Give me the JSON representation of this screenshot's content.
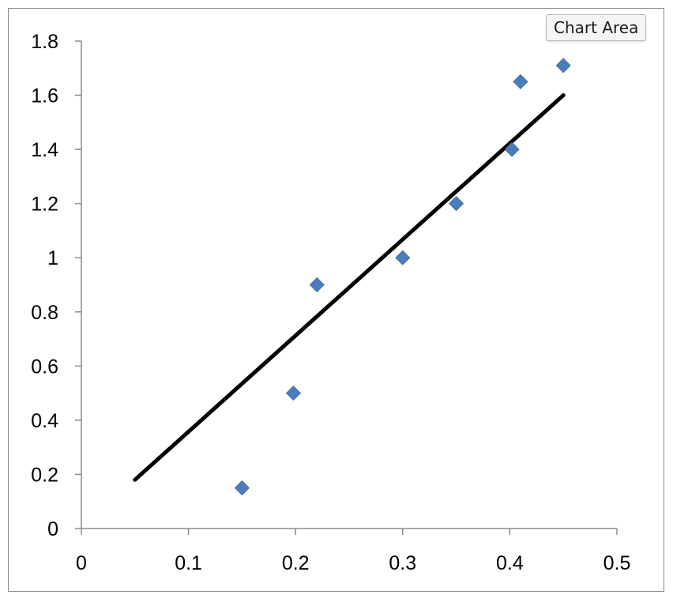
{
  "tooltip": {
    "label": "Chart Area"
  },
  "chart_data": {
    "type": "scatter",
    "title": "",
    "xlabel": "",
    "ylabel": "",
    "xlim": [
      0,
      0.5
    ],
    "ylim": [
      0,
      1.8
    ],
    "x_ticks": [
      "0",
      "0.1",
      "0.2",
      "0.3",
      "0.4",
      "0.5"
    ],
    "y_ticks": [
      "0",
      "0.2",
      "0.4",
      "0.6",
      "0.8",
      "1",
      "1.2",
      "1.4",
      "1.6",
      "1.8"
    ],
    "grid": false,
    "legend": "none",
    "series": [
      {
        "marker": "diamond",
        "color": "#4a7ebb",
        "points": [
          {
            "x": 0.15,
            "y": 0.15
          },
          {
            "x": 0.198,
            "y": 0.5
          },
          {
            "x": 0.22,
            "y": 0.9
          },
          {
            "x": 0.3,
            "y": 1.0
          },
          {
            "x": 0.35,
            "y": 1.2
          },
          {
            "x": 0.402,
            "y": 1.4
          },
          {
            "x": 0.41,
            "y": 1.65
          },
          {
            "x": 0.45,
            "y": 1.71
          }
        ]
      }
    ],
    "trendline": {
      "color": "#000000",
      "points": [
        {
          "x": 0.05,
          "y": 0.18
        },
        {
          "x": 0.45,
          "y": 1.6
        }
      ]
    }
  }
}
